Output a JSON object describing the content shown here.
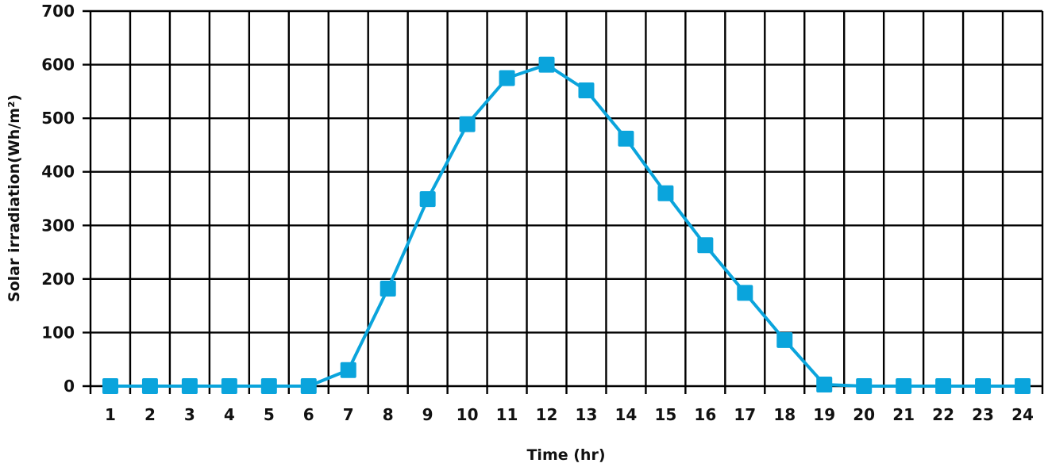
{
  "chart_data": {
    "type": "line",
    "title": "",
    "xlabel": "Time (hr)",
    "ylabel": "Solar irradiation(Wh/m²)",
    "categories": [
      "1",
      "2",
      "3",
      "4",
      "5",
      "6",
      "7",
      "8",
      "9",
      "10",
      "11",
      "12",
      "13",
      "14",
      "15",
      "16",
      "17",
      "18",
      "19",
      "20",
      "21",
      "22",
      "23",
      "24"
    ],
    "series": [
      {
        "name": "Solar irradiation",
        "color": "#0aa4dc",
        "marker": "square",
        "values": [
          0,
          0,
          0,
          0,
          0,
          0,
          30,
          182,
          349,
          489,
          575,
          600,
          552,
          462,
          360,
          263,
          174,
          86,
          3,
          0,
          0,
          0,
          0,
          0
        ]
      }
    ],
    "ylim": [
      0,
      700
    ],
    "yticks": [
      0,
      100,
      200,
      300,
      400,
      500,
      600,
      700
    ],
    "grid": true,
    "legend": "none"
  }
}
